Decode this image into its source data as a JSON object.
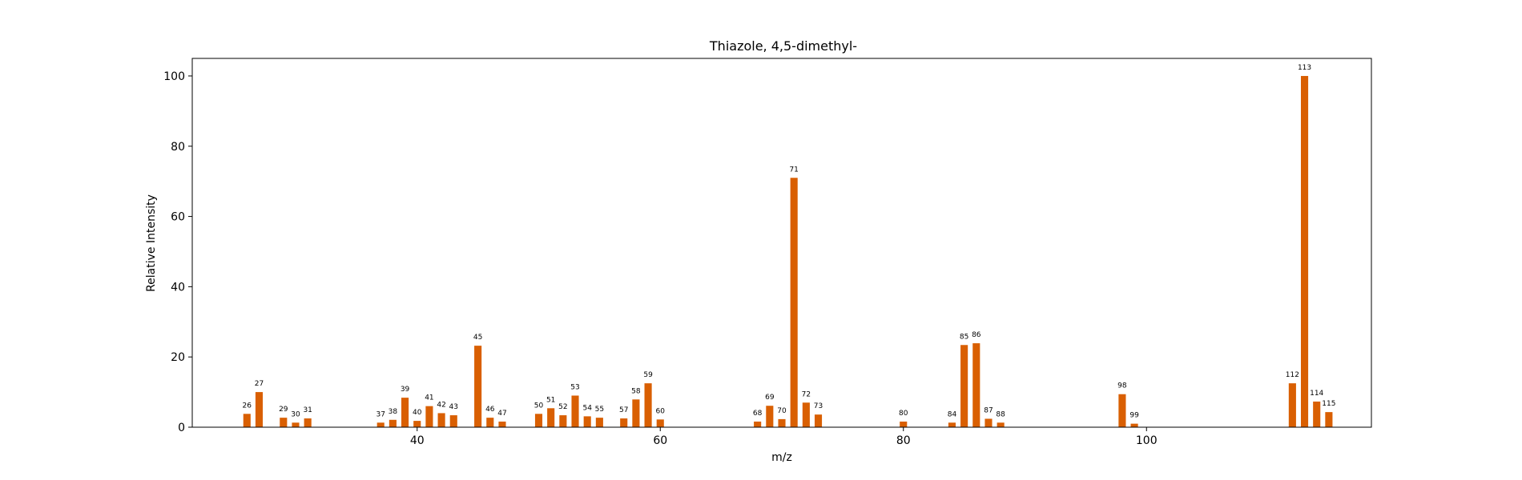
{
  "chart_data": {
    "type": "bar",
    "title": "Thiazole, 4,5-dimethyl-",
    "xlabel": "m/z",
    "ylabel": "Relative Intensity",
    "xlim": [
      21.5,
      118.5
    ],
    "ylim": [
      0,
      105
    ],
    "xticks": [
      40,
      60,
      80,
      100
    ],
    "yticks": [
      0,
      20,
      40,
      60,
      80,
      100
    ],
    "bar_color": "#d95f02",
    "grid": false,
    "legend": "none",
    "x": [
      26,
      27,
      29,
      30,
      31,
      37,
      38,
      39,
      40,
      41,
      42,
      43,
      45,
      46,
      47,
      50,
      51,
      52,
      53,
      54,
      55,
      57,
      58,
      59,
      60,
      68,
      69,
      70,
      71,
      72,
      73,
      80,
      84,
      85,
      86,
      87,
      88,
      98,
      99,
      112,
      113,
      114,
      115
    ],
    "values": [
      3.8,
      10.0,
      2.7,
      1.3,
      2.5,
      1.3,
      2.1,
      8.4,
      1.8,
      6.0,
      4.0,
      3.4,
      23.2,
      2.7,
      1.6,
      3.8,
      5.4,
      3.4,
      9.0,
      3.1,
      2.7,
      2.5,
      7.9,
      12.5,
      2.2,
      1.6,
      6.1,
      2.3,
      71.0,
      7.0,
      3.6,
      1.6,
      1.3,
      23.4,
      23.9,
      2.4,
      1.3,
      9.4,
      1.0,
      12.5,
      100.0,
      7.3,
      4.3
    ],
    "labels": [
      "26",
      "27",
      "29",
      "30",
      "31",
      "37",
      "38",
      "39",
      "40",
      "41",
      "42",
      "43",
      "45",
      "46",
      "47",
      "50",
      "51",
      "52",
      "53",
      "54",
      "55",
      "57",
      "58",
      "59",
      "60",
      "68",
      "69",
      "70",
      "71",
      "72",
      "73",
      "80",
      "84",
      "85",
      "86",
      "87",
      "88",
      "98",
      "99",
      "112",
      "113",
      "114",
      "115"
    ]
  }
}
